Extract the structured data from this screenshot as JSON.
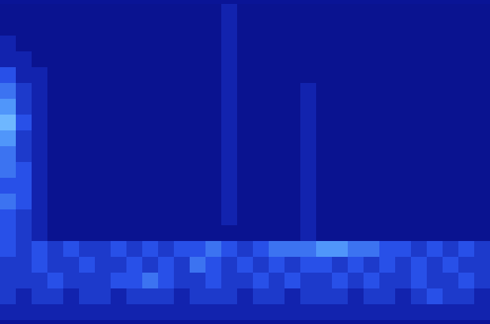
{
  "chart_data": {
    "type": "heatmap",
    "tick_labels": false,
    "zlim": [
      0,
      10
    ],
    "cells": [
      [
        2,
        2,
        2,
        2,
        2,
        2,
        2,
        2,
        2,
        2,
        2,
        2,
        2,
        2,
        3,
        2,
        2,
        2,
        2,
        2,
        2,
        2,
        2,
        2,
        2,
        2,
        2,
        2,
        2,
        2,
        2
      ],
      [
        2,
        2,
        2,
        2,
        2,
        2,
        2,
        2,
        2,
        2,
        2,
        2,
        2,
        2,
        3,
        2,
        2,
        2,
        2,
        2,
        2,
        2,
        2,
        2,
        2,
        2,
        2,
        2,
        2,
        2,
        2
      ],
      [
        3,
        2,
        2,
        2,
        2,
        2,
        2,
        2,
        2,
        2,
        2,
        2,
        2,
        2,
        3,
        2,
        2,
        2,
        2,
        2,
        2,
        2,
        2,
        2,
        2,
        2,
        2,
        2,
        2,
        2,
        2
      ],
      [
        3,
        3,
        2,
        2,
        2,
        2,
        2,
        2,
        2,
        2,
        2,
        2,
        2,
        2,
        3,
        2,
        2,
        2,
        2,
        2,
        2,
        2,
        2,
        2,
        2,
        2,
        2,
        2,
        2,
        2,
        2
      ],
      [
        5,
        3,
        3,
        2,
        2,
        2,
        2,
        2,
        2,
        2,
        2,
        2,
        2,
        2,
        3,
        2,
        2,
        2,
        2,
        2,
        2,
        2,
        2,
        2,
        2,
        2,
        2,
        2,
        2,
        2,
        2
      ],
      [
        6,
        4,
        3,
        2,
        2,
        2,
        2,
        2,
        2,
        2,
        2,
        2,
        2,
        2,
        3,
        2,
        2,
        2,
        2,
        3,
        2,
        2,
        2,
        2,
        2,
        2,
        2,
        2,
        2,
        2,
        2
      ],
      [
        7,
        4,
        3,
        2,
        2,
        2,
        2,
        2,
        2,
        2,
        2,
        2,
        2,
        2,
        3,
        2,
        2,
        2,
        2,
        3,
        2,
        2,
        2,
        2,
        2,
        2,
        2,
        2,
        2,
        2,
        2
      ],
      [
        8,
        5,
        3,
        2,
        2,
        2,
        2,
        2,
        2,
        2,
        2,
        2,
        2,
        2,
        3,
        2,
        2,
        2,
        2,
        3,
        2,
        2,
        2,
        2,
        2,
        2,
        2,
        2,
        2,
        2,
        2
      ],
      [
        7,
        4,
        3,
        2,
        2,
        2,
        2,
        2,
        2,
        2,
        2,
        2,
        2,
        2,
        3,
        2,
        2,
        2,
        2,
        3,
        2,
        2,
        2,
        2,
        2,
        2,
        2,
        2,
        2,
        2,
        2
      ],
      [
        6,
        4,
        3,
        2,
        2,
        2,
        2,
        2,
        2,
        2,
        2,
        2,
        2,
        2,
        3,
        2,
        2,
        2,
        2,
        3,
        2,
        2,
        2,
        2,
        2,
        2,
        2,
        2,
        2,
        2,
        2
      ],
      [
        6,
        5,
        3,
        2,
        2,
        2,
        2,
        2,
        2,
        2,
        2,
        2,
        2,
        2,
        3,
        2,
        2,
        2,
        2,
        3,
        2,
        2,
        2,
        2,
        2,
        2,
        2,
        2,
        2,
        2,
        2
      ],
      [
        5,
        5,
        3,
        2,
        2,
        2,
        2,
        2,
        2,
        2,
        2,
        2,
        2,
        2,
        3,
        2,
        2,
        2,
        2,
        3,
        2,
        2,
        2,
        2,
        2,
        2,
        2,
        2,
        2,
        2,
        2
      ],
      [
        6,
        5,
        3,
        2,
        2,
        2,
        2,
        2,
        2,
        2,
        2,
        2,
        2,
        2,
        3,
        2,
        2,
        2,
        2,
        3,
        2,
        2,
        2,
        2,
        2,
        2,
        2,
        2,
        2,
        2,
        2
      ],
      [
        5,
        4,
        3,
        2,
        2,
        2,
        2,
        2,
        2,
        2,
        2,
        2,
        2,
        2,
        3,
        2,
        2,
        2,
        2,
        3,
        2,
        2,
        2,
        2,
        2,
        2,
        2,
        2,
        2,
        2,
        2
      ],
      [
        5,
        4,
        3,
        2,
        2,
        2,
        2,
        2,
        2,
        2,
        2,
        2,
        2,
        2,
        2,
        2,
        2,
        2,
        2,
        3,
        2,
        2,
        2,
        2,
        2,
        2,
        2,
        2,
        2,
        2,
        2
      ],
      [
        5,
        4,
        5,
        4,
        5,
        4,
        4,
        5,
        4,
        5,
        4,
        5,
        5,
        6,
        5,
        4,
        5,
        6,
        6,
        6,
        7,
        7,
        6,
        6,
        5,
        5,
        4,
        5,
        4,
        5,
        4
      ],
      [
        4,
        4,
        5,
        4,
        4,
        5,
        4,
        4,
        5,
        4,
        5,
        4,
        6,
        5,
        4,
        5,
        4,
        5,
        4,
        5,
        5,
        4,
        5,
        4,
        5,
        4,
        5,
        4,
        5,
        4,
        4
      ],
      [
        4,
        4,
        4,
        5,
        4,
        4,
        4,
        5,
        5,
        6,
        5,
        4,
        4,
        5,
        4,
        4,
        5,
        4,
        5,
        4,
        4,
        5,
        4,
        5,
        4,
        4,
        5,
        4,
        4,
        5,
        4
      ],
      [
        4,
        3,
        4,
        4,
        3,
        4,
        4,
        3,
        4,
        4,
        4,
        3,
        4,
        4,
        4,
        3,
        4,
        4,
        3,
        4,
        4,
        4,
        3,
        4,
        4,
        3,
        4,
        5,
        4,
        4,
        3
      ],
      [
        3,
        3,
        3,
        3,
        3,
        3,
        3,
        3,
        3,
        3,
        3,
        3,
        3,
        3,
        3,
        3,
        3,
        3,
        3,
        3,
        3,
        3,
        3,
        3,
        3,
        3,
        3,
        3,
        3,
        3,
        3
      ]
    ]
  }
}
